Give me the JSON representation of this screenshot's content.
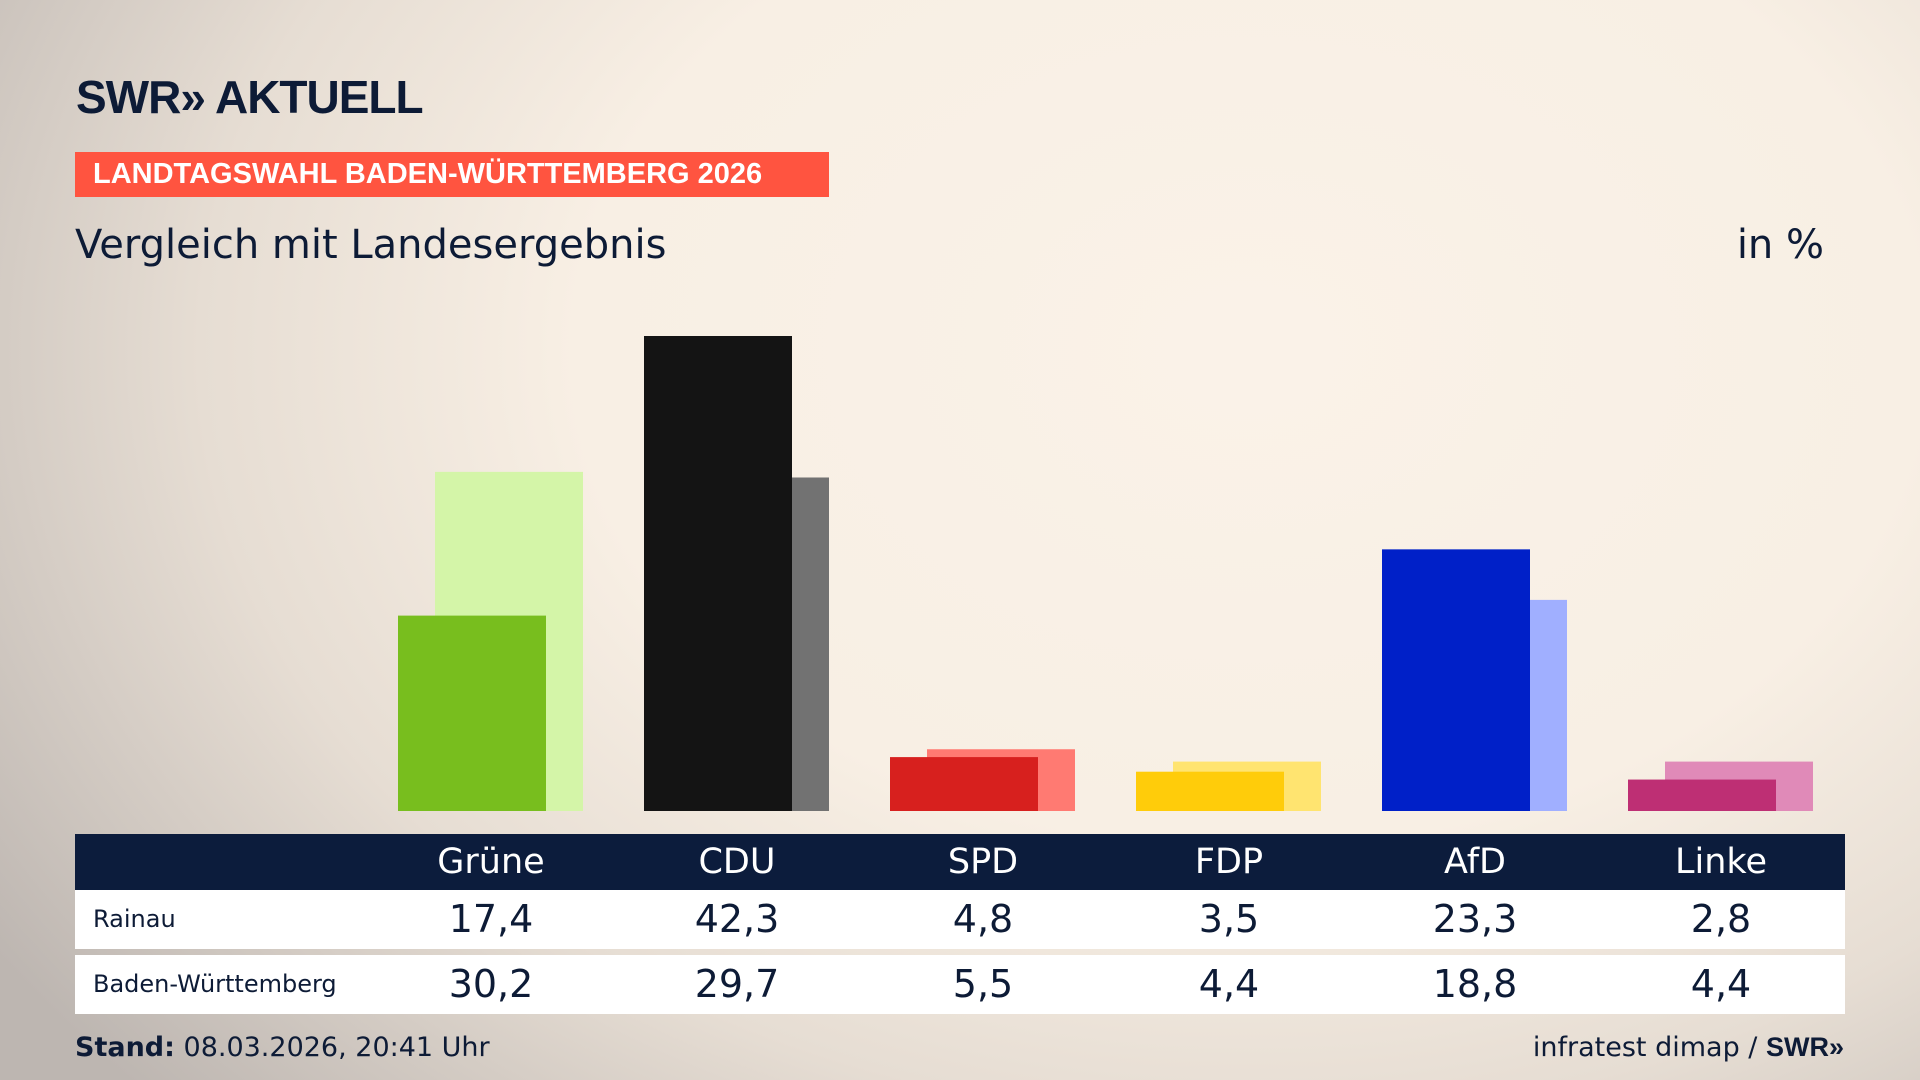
{
  "brand": "SWR» AKTUELL",
  "banner": "LANDTAGSWAHL BADEN-WÜRTTEMBERG 2026",
  "subtitle": "Vergleich mit Landesergebnis",
  "unit": "in %",
  "footer": {
    "stand_label": "Stand:",
    "stand_value": "08.03.2026, 20:41 Uhr",
    "source": "infratest dimap / ",
    "source_brand": "SWR»"
  },
  "chart_data": {
    "type": "bar",
    "categories": [
      "Grüne",
      "CDU",
      "SPD",
      "FDP",
      "AfD",
      "Linke"
    ],
    "series": [
      {
        "name": "Rainau",
        "values": [
          17.4,
          42.3,
          4.8,
          3.5,
          23.3,
          2.8
        ],
        "display": [
          "17,4",
          "42,3",
          "4,8",
          "3,5",
          "23,3",
          "2,8"
        ]
      },
      {
        "name": "Baden-Württemberg",
        "values": [
          30.2,
          29.7,
          5.5,
          4.4,
          18.8,
          4.4
        ],
        "display": [
          "30,2",
          "29,7",
          "5,5",
          "4,4",
          "18,8",
          "4,4"
        ]
      }
    ],
    "colors_primary": [
      "#78be1e",
      "#141414",
      "#d7201e",
      "#ffcc0a",
      "#0020c8",
      "#be2f74"
    ],
    "colors_secondary": [
      "#d4f5a8",
      "#727272",
      "#ff7a72",
      "#ffe470",
      "#a0afff",
      "#e08ab8"
    ],
    "ylim": [
      0,
      42.3
    ],
    "grid": false,
    "legend": "table-below"
  }
}
